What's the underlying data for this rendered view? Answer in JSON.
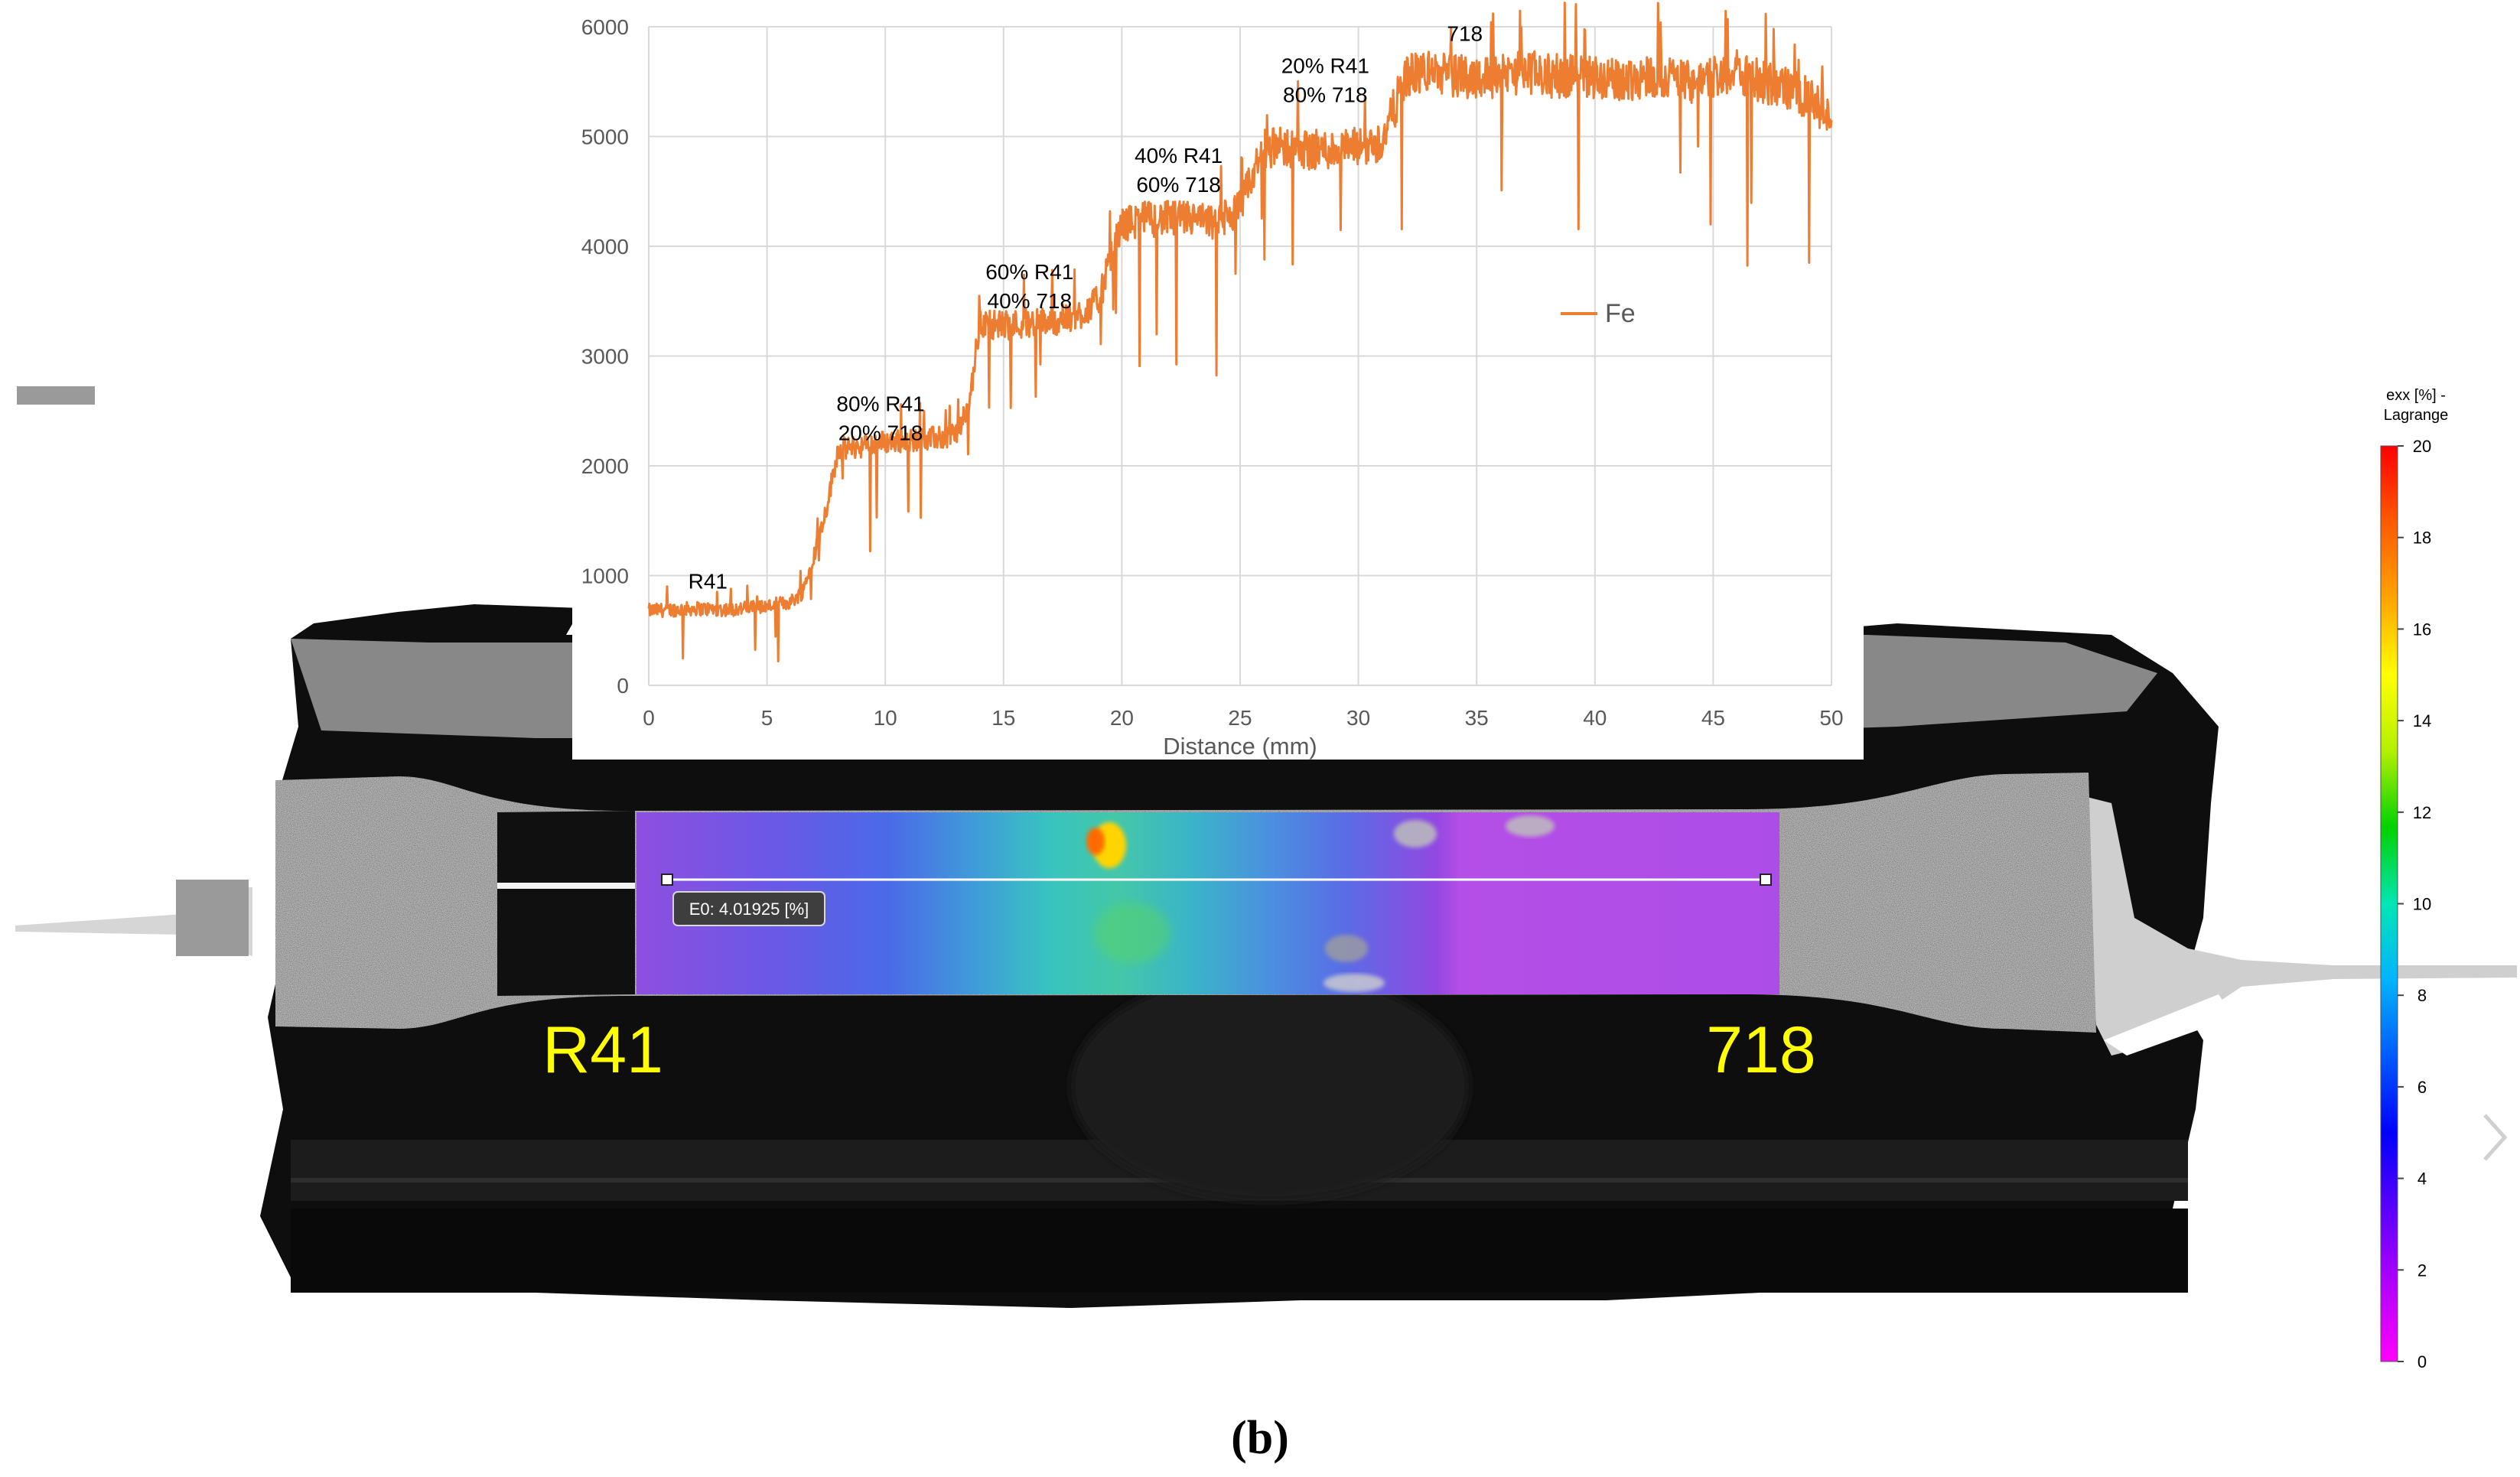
{
  "chart_data": {
    "type": "line",
    "xlabel": "Distance (mm)",
    "ylabel": "",
    "xlim": [
      0,
      50
    ],
    "ylim": [
      0,
      6000
    ],
    "x_ticks": [
      0,
      5,
      10,
      15,
      20,
      25,
      30,
      35,
      40,
      45,
      50
    ],
    "y_ticks": [
      0,
      1000,
      2000,
      3000,
      4000,
      5000,
      6000
    ],
    "grid": true,
    "legend_position": "right",
    "series": [
      {
        "name": "Fe",
        "color": "#ED7D31",
        "x": [
          0,
          1,
          2,
          3,
          4,
          5,
          6,
          6.5,
          7,
          7.5,
          8,
          9,
          10,
          11,
          12,
          12.5,
          13,
          13.5,
          14,
          15,
          16,
          17,
          18,
          19,
          20,
          21,
          22,
          23,
          24,
          25,
          26,
          27,
          28,
          29,
          30,
          31,
          32,
          33,
          34,
          35,
          36,
          37,
          38,
          39,
          40,
          41,
          42,
          43,
          44,
          45,
          46,
          47,
          48,
          49,
          50
        ],
        "values": [
          680,
          690,
          700,
          690,
          700,
          720,
          760,
          850,
          1200,
          1600,
          2150,
          2180,
          2220,
          2230,
          2250,
          2260,
          2300,
          2500,
          3300,
          3280,
          3300,
          3320,
          3350,
          3500,
          4200,
          4250,
          4250,
          4250,
          4200,
          4350,
          4900,
          4900,
          4880,
          4880,
          4900,
          4950,
          5550,
          5600,
          5550,
          5550,
          5550,
          5600,
          5550,
          5550,
          5550,
          5500,
          5550,
          5550,
          5500,
          5550,
          5600,
          5500,
          5450,
          5350,
          5150
        ]
      }
    ],
    "annotations": [
      {
        "text": "R41",
        "x": 2.5,
        "y": 880
      },
      {
        "lines": [
          "80% R41",
          "20% 718"
        ],
        "x": 9.8,
        "y": 2500
      },
      {
        "lines": [
          "60% R41",
          "40% 718"
        ],
        "x": 16.1,
        "y": 3700
      },
      {
        "lines": [
          "40% R41",
          "60% 718"
        ],
        "x": 22.4,
        "y": 4760
      },
      {
        "lines": [
          "20% R41",
          "80% 718"
        ],
        "x": 28.6,
        "y": 5580
      },
      {
        "text": "718",
        "x": 34.5,
        "y": 5870
      }
    ]
  },
  "colorbar": {
    "title_lines": [
      "exx [%] -",
      "Lagrange"
    ],
    "min": 0,
    "max": 20,
    "tick_labels": [
      "20",
      "18",
      "16",
      "14",
      "12",
      "10",
      "8",
      "6",
      "4",
      "2",
      "0"
    ],
    "colors": [
      "#ff0000",
      "#ff5a00",
      "#ffa500",
      "#ffff00",
      "#b4f000",
      "#00d200",
      "#00e6b4",
      "#00b4ff",
      "#005aff",
      "#0000ff",
      "#5a00ff",
      "#b400ff",
      "#ff00ff"
    ]
  },
  "photo": {
    "left_label": "R41",
    "right_label": "718",
    "measurement_label": "E0: 4.01925 [%]",
    "label_color": "#ffff00"
  },
  "caption": {
    "open": "(",
    "letter": "b",
    "close": ")"
  }
}
